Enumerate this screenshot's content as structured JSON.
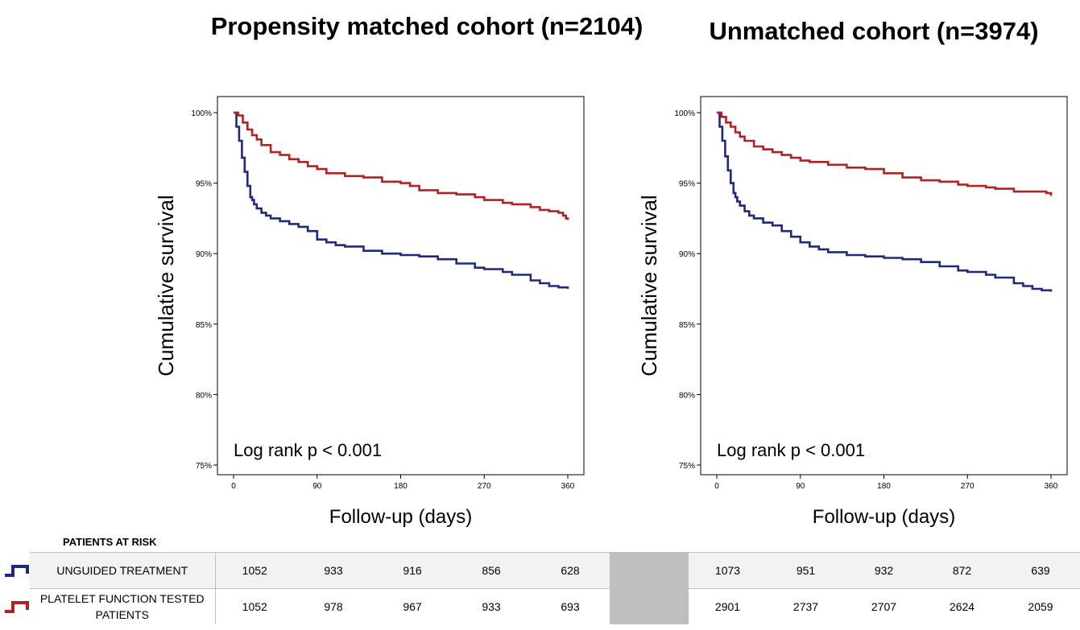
{
  "chart_data": [
    {
      "type": "line",
      "title": "Propensity matched cohort (n=2104)",
      "xlabel": "Follow-up (days)",
      "ylabel": "Cumulative survival",
      "xlim": [
        0,
        360
      ],
      "ylim": [
        75,
        100
      ],
      "xticks": [
        0,
        90,
        180,
        270,
        360
      ],
      "yticks": [
        75,
        80,
        85,
        90,
        95,
        100
      ],
      "ytick_labels": [
        "75%",
        "80%",
        "85%",
        "90%",
        "95%",
        "100%"
      ],
      "annotation": "Log rank p < 0.001",
      "series": [
        {
          "color": "#1f2a7a",
          "x": [
            0,
            3,
            6,
            9,
            12,
            15,
            18,
            20,
            22,
            25,
            30,
            35,
            40,
            50,
            60,
            70,
            80,
            90,
            100,
            110,
            120,
            140,
            160,
            180,
            200,
            220,
            240,
            260,
            270,
            290,
            300,
            320,
            330,
            340,
            350,
            360
          ],
          "y": [
            100,
            99.0,
            98.0,
            96.8,
            95.8,
            94.8,
            94.0,
            93.8,
            93.5,
            93.2,
            92.9,
            92.7,
            92.5,
            92.3,
            92.1,
            91.9,
            91.6,
            91.0,
            90.8,
            90.6,
            90.5,
            90.2,
            90.0,
            89.9,
            89.8,
            89.6,
            89.3,
            89.0,
            88.9,
            88.7,
            88.5,
            88.1,
            87.9,
            87.7,
            87.6,
            87.5
          ]
        },
        {
          "color": "#b22222",
          "x": [
            0,
            5,
            10,
            15,
            20,
            25,
            30,
            40,
            50,
            60,
            70,
            80,
            90,
            100,
            120,
            140,
            160,
            180,
            190,
            200,
            220,
            240,
            260,
            270,
            290,
            300,
            320,
            330,
            340,
            350,
            355,
            358,
            360
          ],
          "y": [
            100,
            99.8,
            99.3,
            98.8,
            98.4,
            98.1,
            97.7,
            97.2,
            97.0,
            96.7,
            96.5,
            96.2,
            96.0,
            95.7,
            95.5,
            95.4,
            95.1,
            95.0,
            94.8,
            94.5,
            94.3,
            94.2,
            94.0,
            93.8,
            93.6,
            93.5,
            93.3,
            93.1,
            93.0,
            92.9,
            92.7,
            92.5,
            92.4
          ]
        }
      ]
    },
    {
      "type": "line",
      "title": "Unmatched cohort (n=3974)",
      "xlabel": "Follow-up (days)",
      "ylabel": "Cumulative survival",
      "xlim": [
        0,
        360
      ],
      "ylim": [
        75,
        100
      ],
      "xticks": [
        0,
        90,
        180,
        270,
        360
      ],
      "yticks": [
        75,
        80,
        85,
        90,
        95,
        100
      ],
      "ytick_labels": [
        "75%",
        "80%",
        "85%",
        "90%",
        "95%",
        "100%"
      ],
      "annotation": "Log rank p < 0.001",
      "series": [
        {
          "color": "#1f2a7a",
          "x": [
            0,
            3,
            6,
            9,
            12,
            15,
            18,
            20,
            22,
            25,
            30,
            35,
            40,
            50,
            60,
            70,
            80,
            90,
            100,
            110,
            120,
            140,
            160,
            180,
            200,
            220,
            240,
            260,
            270,
            290,
            300,
            320,
            330,
            340,
            350,
            360
          ],
          "y": [
            100,
            99.0,
            98.0,
            96.9,
            95.9,
            95.0,
            94.3,
            94.0,
            93.7,
            93.4,
            93.0,
            92.7,
            92.5,
            92.2,
            92.0,
            91.6,
            91.2,
            90.8,
            90.5,
            90.3,
            90.1,
            89.9,
            89.8,
            89.7,
            89.6,
            89.4,
            89.1,
            88.8,
            88.7,
            88.5,
            88.3,
            87.9,
            87.7,
            87.5,
            87.4,
            87.3
          ]
        },
        {
          "color": "#b22222",
          "x": [
            0,
            5,
            10,
            15,
            20,
            25,
            30,
            40,
            50,
            60,
            70,
            80,
            90,
            100,
            120,
            140,
            160,
            180,
            200,
            220,
            240,
            260,
            270,
            290,
            300,
            320,
            340,
            355,
            360
          ],
          "y": [
            100,
            99.7,
            99.3,
            99.0,
            98.6,
            98.3,
            98.0,
            97.6,
            97.4,
            97.2,
            97.0,
            96.8,
            96.6,
            96.5,
            96.3,
            96.1,
            96.0,
            95.7,
            95.4,
            95.2,
            95.1,
            94.9,
            94.8,
            94.7,
            94.6,
            94.4,
            94.4,
            94.3,
            94.1
          ]
        }
      ]
    }
  ],
  "risk_table": {
    "title": "PATIENTS AT RISK",
    "rows": [
      {
        "label": "UNGUIDED TREATMENT",
        "icon": "blue-step-line-icon",
        "color": "#1f2a7a",
        "left": [
          "1052",
          "933",
          "916",
          "856",
          "628"
        ],
        "right": [
          "1073",
          "951",
          "932",
          "872",
          "639"
        ]
      },
      {
        "label": "PLATELET FUNCTION TESTED PATIENTS",
        "icon": "red-step-line-icon",
        "color": "#b22222",
        "left": [
          "1052",
          "978",
          "967",
          "933",
          "693"
        ],
        "right": [
          "2901",
          "2737",
          "2707",
          "2624",
          "2059"
        ]
      }
    ]
  }
}
